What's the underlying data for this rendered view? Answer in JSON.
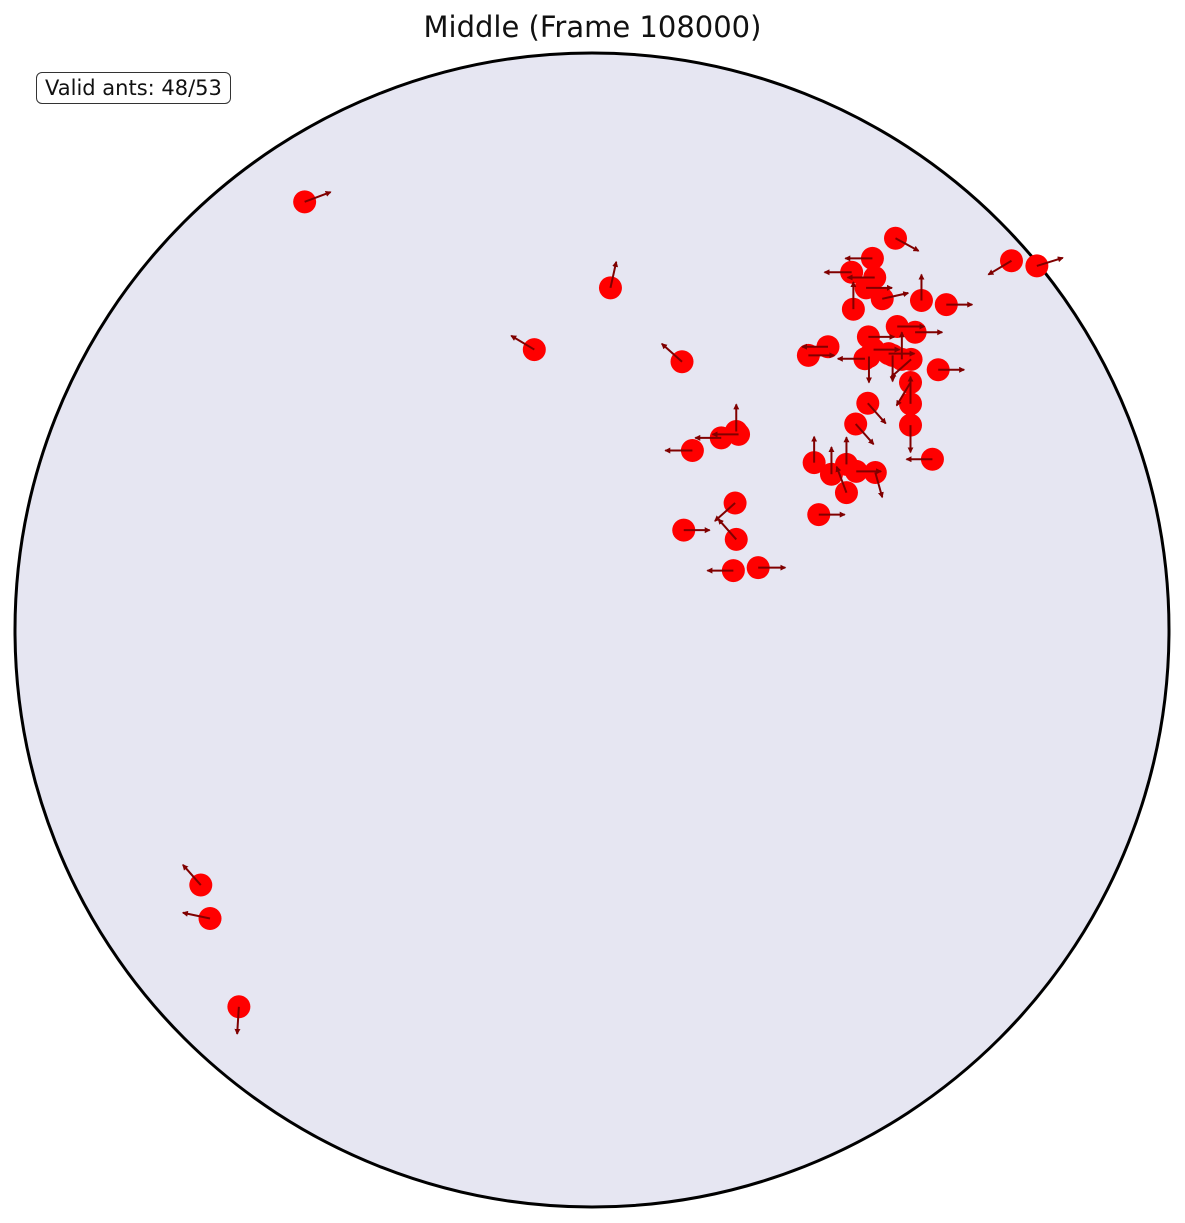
{
  "chart_data": {
    "type": "scatter",
    "title": "Middle (Frame 108000)",
    "annotation": "Valid ants: 48/53",
    "xlim": [
      -1,
      1
    ],
    "ylim": [
      -1,
      1
    ],
    "grid": false,
    "arena": {
      "shape": "circle",
      "radius": 1,
      "fill": "#e6e6f2",
      "edge": "#000000"
    },
    "point_color": "#ff0000",
    "arrow_color": "#800000",
    "points": [
      {
        "x": -0.498,
        "y": 0.742,
        "dx": 0.045,
        "dy": 0.017
      },
      {
        "x": 0.032,
        "y": 0.593,
        "dx": 0.01,
        "dy": 0.045
      },
      {
        "x": -0.1,
        "y": 0.486,
        "dx": -0.04,
        "dy": 0.024
      },
      {
        "x": 0.156,
        "y": 0.465,
        "dx": -0.035,
        "dy": 0.031
      },
      {
        "x": 0.526,
        "y": 0.679,
        "dx": 0.04,
        "dy": -0.022
      },
      {
        "x": 0.486,
        "y": 0.644,
        "dx": -0.047,
        "dy": 0.0
      },
      {
        "x": 0.45,
        "y": 0.62,
        "dx": -0.047,
        "dy": 0.0
      },
      {
        "x": 0.49,
        "y": 0.611,
        "dx": -0.047,
        "dy": 0.0
      },
      {
        "x": 0.503,
        "y": 0.574,
        "dx": 0.045,
        "dy": 0.01
      },
      {
        "x": 0.475,
        "y": 0.593,
        "dx": 0.045,
        "dy": 0.0
      },
      {
        "x": 0.453,
        "y": 0.556,
        "dx": 0.0,
        "dy": 0.047
      },
      {
        "x": 0.571,
        "y": 0.571,
        "dx": 0.0,
        "dy": 0.045
      },
      {
        "x": 0.614,
        "y": 0.564,
        "dx": 0.045,
        "dy": 0.0
      },
      {
        "x": 0.727,
        "y": 0.64,
        "dx": -0.04,
        "dy": -0.024
      },
      {
        "x": 0.771,
        "y": 0.631,
        "dx": 0.045,
        "dy": 0.014
      },
      {
        "x": 0.529,
        "y": 0.526,
        "dx": 0.047,
        "dy": 0.0
      },
      {
        "x": 0.56,
        "y": 0.516,
        "dx": 0.047,
        "dy": 0.0
      },
      {
        "x": 0.479,
        "y": 0.508,
        "dx": 0.045,
        "dy": 0.0
      },
      {
        "x": 0.488,
        "y": 0.486,
        "dx": 0.045,
        "dy": 0.0
      },
      {
        "x": 0.521,
        "y": 0.476,
        "dx": 0.0,
        "dy": -0.045
      },
      {
        "x": 0.473,
        "y": 0.47,
        "dx": -0.047,
        "dy": 0.0
      },
      {
        "x": 0.409,
        "y": 0.491,
        "dx": -0.045,
        "dy": 0.0
      },
      {
        "x": 0.375,
        "y": 0.476,
        "dx": 0.045,
        "dy": 0.0
      },
      {
        "x": 0.48,
        "y": 0.474,
        "dx": 0.0,
        "dy": -0.045
      },
      {
        "x": 0.514,
        "y": 0.479,
        "dx": 0.045,
        "dy": 0.0
      },
      {
        "x": 0.537,
        "y": 0.469,
        "dx": 0.0,
        "dy": 0.047
      },
      {
        "x": 0.553,
        "y": 0.469,
        "dx": -0.035,
        "dy": -0.031
      },
      {
        "x": 0.6,
        "y": 0.451,
        "dx": 0.045,
        "dy": 0.0
      },
      {
        "x": 0.552,
        "y": 0.429,
        "dx": -0.024,
        "dy": -0.04
      },
      {
        "x": 0.552,
        "y": 0.392,
        "dx": 0.0,
        "dy": 0.047
      },
      {
        "x": 0.478,
        "y": 0.393,
        "dx": 0.031,
        "dy": -0.035
      },
      {
        "x": 0.552,
        "y": 0.355,
        "dx": 0.0,
        "dy": -0.047
      },
      {
        "x": 0.457,
        "y": 0.357,
        "dx": 0.031,
        "dy": -0.035
      },
      {
        "x": 0.25,
        "y": 0.344,
        "dx": 0.0,
        "dy": 0.047
      },
      {
        "x": 0.224,
        "y": 0.333,
        "dx": -0.045,
        "dy": 0.0
      },
      {
        "x": 0.254,
        "y": 0.339,
        "dx": -0.045,
        "dy": 0.0
      },
      {
        "x": 0.174,
        "y": 0.311,
        "dx": -0.047,
        "dy": 0.0
      },
      {
        "x": 0.385,
        "y": 0.29,
        "dx": 0.0,
        "dy": 0.045
      },
      {
        "x": 0.441,
        "y": 0.287,
        "dx": 0.0,
        "dy": 0.047
      },
      {
        "x": 0.415,
        "y": 0.27,
        "dx": 0.0,
        "dy": 0.047
      },
      {
        "x": 0.458,
        "y": 0.275,
        "dx": 0.043,
        "dy": 0.0
      },
      {
        "x": 0.59,
        "y": 0.296,
        "dx": -0.045,
        "dy": 0.0
      },
      {
        "x": 0.491,
        "y": 0.273,
        "dx": 0.012,
        "dy": -0.043
      },
      {
        "x": 0.441,
        "y": 0.238,
        "dx": -0.017,
        "dy": 0.045
      },
      {
        "x": 0.393,
        "y": 0.2,
        "dx": 0.045,
        "dy": 0.0
      },
      {
        "x": 0.248,
        "y": 0.22,
        "dx": -0.035,
        "dy": -0.031
      },
      {
        "x": 0.25,
        "y": 0.157,
        "dx": -0.031,
        "dy": 0.035
      },
      {
        "x": 0.159,
        "y": 0.173,
        "dx": 0.045,
        "dy": 0.0
      },
      {
        "x": 0.288,
        "y": 0.108,
        "dx": 0.047,
        "dy": 0.0
      },
      {
        "x": 0.245,
        "y": 0.103,
        "dx": -0.045,
        "dy": 0.0
      },
      {
        "x": -0.678,
        "y": -0.442,
        "dx": -0.031,
        "dy": 0.035
      },
      {
        "x": -0.662,
        "y": -0.5,
        "dx": -0.047,
        "dy": 0.01
      },
      {
        "x": -0.612,
        "y": -0.653,
        "dx": -0.003,
        "dy": -0.047
      }
    ]
  }
}
